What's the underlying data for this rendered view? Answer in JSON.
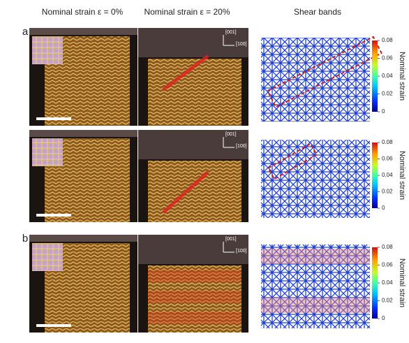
{
  "header": {
    "columns": [
      "Nominal strain ε = 0%",
      "Nominal strain ε = 20%",
      "Shear bands"
    ]
  },
  "rows": [
    {
      "panel": "a",
      "direction_up": "[001]",
      "direction_right": "[100]",
      "colorbar": {
        "label": "Nominal strain",
        "lim": [
          0,
          0.08
        ],
        "ticks": [
          0,
          0.02,
          0.04,
          0.06,
          0.08
        ]
      }
    },
    {
      "direction_up": "[001]",
      "direction_right": "[100]",
      "colorbar": {
        "label": "Nominal strain",
        "lim": [
          0,
          0.08
        ],
        "ticks": [
          0,
          0.02,
          0.04,
          0.06,
          0.08
        ]
      }
    },
    {
      "panel": "b",
      "direction_up": "[001]",
      "direction_right": "[100]",
      "colorbar": {
        "label": "Nominal strain",
        "lim": [
          0,
          0.08
        ],
        "ticks": [
          0,
          0.02,
          0.04,
          0.06,
          0.08
        ]
      }
    }
  ]
}
